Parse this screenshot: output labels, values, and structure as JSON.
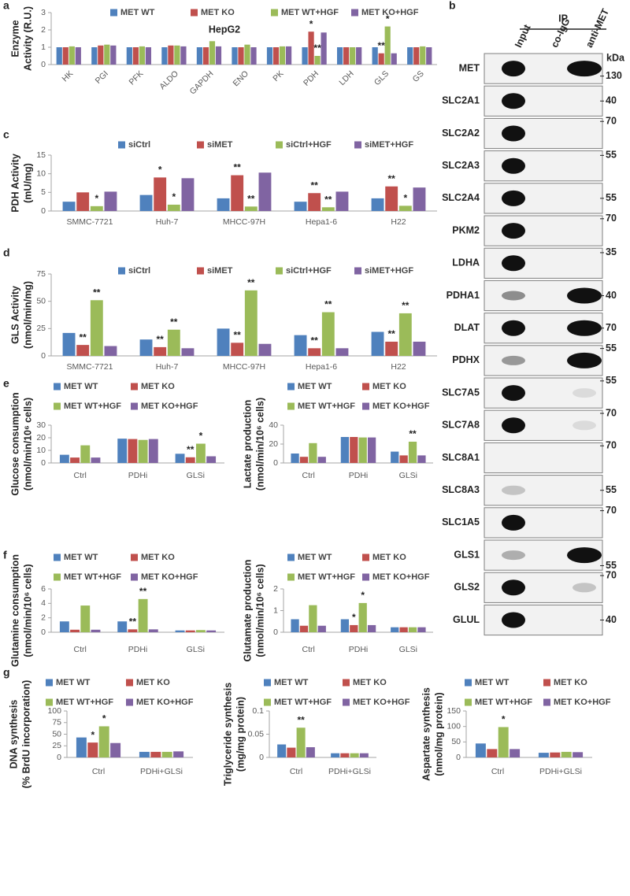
{
  "chart_data": [
    {
      "type": "bar",
      "panel": "a",
      "title": "HepG2",
      "ylabel": [
        "Enzyme",
        "Activity (R.U.)"
      ],
      "categories": [
        "HK",
        "PGI",
        "PFK",
        "ALDO",
        "GAPDH",
        "ENO",
        "PK",
        "PDH",
        "LDH",
        "GLS",
        "GS"
      ],
      "series": [
        {
          "name": "MET WT",
          "color": "#4f81bd",
          "values": [
            1,
            1,
            1,
            1,
            1,
            1,
            1,
            1,
            1,
            1,
            1
          ]
        },
        {
          "name": "MET KO",
          "color": "#c0504d",
          "values": [
            1,
            1.1,
            1,
            1.1,
            1,
            1,
            1,
            1.9,
            1,
            0.65,
            1
          ]
        },
        {
          "name": "MET WT+HGF",
          "color": "#9bbb59",
          "values": [
            1.05,
            1.15,
            1.05,
            1.1,
            1.35,
            1.15,
            1.05,
            0.5,
            1,
            2.2,
            1.05
          ]
        },
        {
          "name": "MET KO+HGF",
          "color": "#8064a2",
          "values": [
            1,
            1.1,
            1,
            1.05,
            1.05,
            1,
            1.05,
            1.85,
            1,
            0.65,
            1
          ]
        }
      ],
      "ylim": [
        0,
        3
      ],
      "yticks": [
        0,
        1,
        2,
        3
      ],
      "annotations": [
        {
          "text": "*",
          "category": "PDH",
          "series": "MET KO"
        },
        {
          "text": "**",
          "category": "PDH",
          "series": "MET WT+HGF"
        },
        {
          "text": "**",
          "category": "GLS",
          "series": "MET KO"
        },
        {
          "text": "*",
          "category": "GLS",
          "series": "MET WT+HGF"
        }
      ]
    },
    {
      "type": "bar",
      "panel": "c",
      "ylabel": [
        "PDH Activity",
        "(mU/mg)"
      ],
      "categories": [
        "SMMC-7721",
        "Huh-7",
        "MHCC-97H",
        "Hepa1-6",
        "H22"
      ],
      "series": [
        {
          "name": "siCtrl",
          "color": "#4f81bd",
          "values": [
            2.5,
            4.3,
            3.4,
            2.5,
            3.4
          ]
        },
        {
          "name": "siMET",
          "color": "#c0504d",
          "values": [
            5,
            9,
            9.6,
            4.8,
            6.6
          ]
        },
        {
          "name": "siCtrl+HGF",
          "color": "#9bbb59",
          "values": [
            1.3,
            1.7,
            1.2,
            1,
            1.4
          ]
        },
        {
          "name": "siMET+HGF",
          "color": "#8064a2",
          "values": [
            5.2,
            8.8,
            10.3,
            5.2,
            6.3
          ]
        }
      ],
      "ylim": [
        0,
        15
      ],
      "yticks": [
        0,
        5,
        10,
        15
      ],
      "annotations": [
        {
          "text": "*",
          "category": "SMMC-7721",
          "series": "siCtrl+HGF"
        },
        {
          "text": "*",
          "category": "Huh-7",
          "series": "siMET"
        },
        {
          "text": "*",
          "category": "Huh-7",
          "series": "siCtrl+HGF"
        },
        {
          "text": "**",
          "category": "MHCC-97H",
          "series": "siMET"
        },
        {
          "text": "**",
          "category": "MHCC-97H",
          "series": "siCtrl+HGF"
        },
        {
          "text": "**",
          "category": "Hepa1-6",
          "series": "siMET"
        },
        {
          "text": "**",
          "category": "Hepa1-6",
          "series": "siCtrl+HGF"
        },
        {
          "text": "**",
          "category": "H22",
          "series": "siMET"
        },
        {
          "text": "*",
          "category": "H22",
          "series": "siCtrl+HGF"
        }
      ]
    },
    {
      "type": "bar",
      "panel": "d",
      "ylabel": [
        "GLS Activity",
        "(nmol/min/mg)"
      ],
      "categories": [
        "SMMC-7721",
        "Huh-7",
        "MHCC-97H",
        "Hepa1-6",
        "H22"
      ],
      "series": [
        {
          "name": "siCtrl",
          "color": "#4f81bd",
          "values": [
            21,
            15,
            25,
            19,
            22
          ]
        },
        {
          "name": "siMET",
          "color": "#c0504d",
          "values": [
            10,
            8,
            12,
            7,
            13
          ]
        },
        {
          "name": "siCtrl+HGF",
          "color": "#9bbb59",
          "values": [
            51,
            24,
            60,
            40,
            39
          ]
        },
        {
          "name": "siMET+HGF",
          "color": "#8064a2",
          "values": [
            9,
            7,
            11,
            7,
            13
          ]
        }
      ],
      "ylim": [
        0,
        75
      ],
      "yticks": [
        0,
        25,
        50,
        75
      ],
      "annotations": [
        {
          "text": "**",
          "category": "SMMC-7721",
          "series": "siMET"
        },
        {
          "text": "**",
          "category": "SMMC-7721",
          "series": "siCtrl+HGF"
        },
        {
          "text": "**",
          "category": "Huh-7",
          "series": "siMET"
        },
        {
          "text": "**",
          "category": "Huh-7",
          "series": "siCtrl+HGF"
        },
        {
          "text": "**",
          "category": "MHCC-97H",
          "series": "siMET"
        },
        {
          "text": "**",
          "category": "MHCC-97H",
          "series": "siCtrl+HGF"
        },
        {
          "text": "**",
          "category": "Hepa1-6",
          "series": "siMET"
        },
        {
          "text": "**",
          "category": "Hepa1-6",
          "series": "siCtrl+HGF"
        },
        {
          "text": "**",
          "category": "H22",
          "series": "siMET"
        },
        {
          "text": "**",
          "category": "H22",
          "series": "siCtrl+HGF"
        }
      ]
    },
    {
      "type": "bar",
      "panel": "e",
      "ylabel": [
        "Glucose consumption",
        "(nmol/min/10⁶ cells)"
      ],
      "categories": [
        "Ctrl",
        "PDHi",
        "GLSi"
      ],
      "series": [
        {
          "name": "MET WT",
          "color": "#4f81bd",
          "values": [
            6.5,
            19.3,
            7.3
          ]
        },
        {
          "name": "MET KO",
          "color": "#c0504d",
          "values": [
            4.3,
            19,
            4.5
          ]
        },
        {
          "name": "MET WT+HGF",
          "color": "#9bbb59",
          "values": [
            14,
            18.3,
            15.3
          ]
        },
        {
          "name": "MET KO+HGF",
          "color": "#8064a2",
          "values": [
            4.3,
            19,
            5.3
          ]
        }
      ],
      "ylim": [
        0,
        30
      ],
      "yticks": [
        0,
        10,
        20,
        30
      ],
      "annotations": [
        {
          "text": "**",
          "category": "GLSi",
          "series": "MET KO"
        },
        {
          "text": "*",
          "category": "GLSi",
          "series": "MET WT+HGF"
        }
      ]
    },
    {
      "type": "bar",
      "ylabel": [
        "Lactate production",
        "(nmol/min/10⁶ cells)"
      ],
      "categories": [
        "Ctrl",
        "PDHi",
        "GLSi"
      ],
      "series": [
        {
          "name": "MET WT",
          "color": "#4f81bd",
          "values": [
            10,
            27.5,
            12
          ]
        },
        {
          "name": "MET KO",
          "color": "#c0504d",
          "values": [
            6.5,
            27.5,
            8
          ]
        },
        {
          "name": "MET WT+HGF",
          "color": "#9bbb59",
          "values": [
            21,
            27,
            22.5
          ]
        },
        {
          "name": "MET KO+HGF",
          "color": "#8064a2",
          "values": [
            6.5,
            27,
            8
          ]
        }
      ],
      "ylim": [
        0,
        40
      ],
      "yticks": [
        0,
        20,
        40
      ],
      "annotations": [
        {
          "text": "**",
          "category": "GLSi",
          "series": "MET WT+HGF"
        }
      ]
    },
    {
      "type": "bar",
      "panel": "f",
      "ylabel": [
        "Glutamine consumption",
        "(nmol/min/10⁶ cells)"
      ],
      "categories": [
        "Ctrl",
        "PDHi",
        "GLSi"
      ],
      "series": [
        {
          "name": "MET WT",
          "color": "#4f81bd",
          "values": [
            1.5,
            1.5,
            0.25
          ]
        },
        {
          "name": "MET KO",
          "color": "#c0504d",
          "values": [
            0.35,
            0.4,
            0.25
          ]
        },
        {
          "name": "MET WT+HGF",
          "color": "#9bbb59",
          "values": [
            3.7,
            4.6,
            0.3
          ]
        },
        {
          "name": "MET KO+HGF",
          "color": "#8064a2",
          "values": [
            0.35,
            0.4,
            0.25
          ]
        }
      ],
      "ylim": [
        0,
        6
      ],
      "yticks": [
        0,
        2,
        4,
        6
      ],
      "annotations": [
        {
          "text": "**",
          "category": "PDHi",
          "series": "MET KO"
        },
        {
          "text": "**",
          "category": "PDHi",
          "series": "MET WT+HGF"
        }
      ]
    },
    {
      "type": "bar",
      "ylabel": [
        "Glutamate production",
        "(nmol/min/10⁶ cells)"
      ],
      "categories": [
        "Ctrl",
        "PDHi",
        "GLSi"
      ],
      "series": [
        {
          "name": "MET WT",
          "color": "#4f81bd",
          "values": [
            0.6,
            0.6,
            0.23
          ]
        },
        {
          "name": "MET KO",
          "color": "#c0504d",
          "values": [
            0.3,
            0.33,
            0.23
          ]
        },
        {
          "name": "MET WT+HGF",
          "color": "#9bbb59",
          "values": [
            1.25,
            1.35,
            0.23
          ]
        },
        {
          "name": "MET KO+HGF",
          "color": "#8064a2",
          "values": [
            0.3,
            0.33,
            0.23
          ]
        }
      ],
      "ylim": [
        0,
        2
      ],
      "yticks": [
        0,
        1,
        2
      ],
      "annotations": [
        {
          "text": "*",
          "category": "PDHi",
          "series": "MET KO"
        },
        {
          "text": "*",
          "category": "PDHi",
          "series": "MET WT+HGF"
        }
      ]
    },
    {
      "type": "bar",
      "panel": "g",
      "ylabel": [
        "DNA synthesis",
        "(% BrdU incorporation)"
      ],
      "categories": [
        "Ctrl",
        "PDHi+GLSi"
      ],
      "series": [
        {
          "name": "MET WT",
          "color": "#4f81bd",
          "values": [
            43,
            12
          ]
        },
        {
          "name": "MET KO",
          "color": "#c0504d",
          "values": [
            32,
            12
          ]
        },
        {
          "name": "MET WT+HGF",
          "color": "#9bbb59",
          "values": [
            67,
            12
          ]
        },
        {
          "name": "MET KO+HGF",
          "color": "#8064a2",
          "values": [
            31,
            13
          ]
        }
      ],
      "ylim": [
        0,
        100
      ],
      "yticks": [
        0,
        25,
        50,
        75,
        100
      ],
      "annotations": [
        {
          "text": "*",
          "category": "Ctrl",
          "series": "MET KO"
        },
        {
          "text": "*",
          "category": "Ctrl",
          "series": "MET WT+HGF"
        }
      ]
    },
    {
      "type": "bar",
      "ylabel": [
        "Triglyceride synthesis",
        "(mg/mg protein)"
      ],
      "categories": [
        "Ctrl",
        "PDHi+GLSi"
      ],
      "series": [
        {
          "name": "MET WT",
          "color": "#4f81bd",
          "values": [
            0.028,
            0.009
          ]
        },
        {
          "name": "MET KO",
          "color": "#c0504d",
          "values": [
            0.021,
            0.009
          ]
        },
        {
          "name": "MET WT+HGF",
          "color": "#9bbb59",
          "values": [
            0.064,
            0.009
          ]
        },
        {
          "name": "MET KO+HGF",
          "color": "#8064a2",
          "values": [
            0.022,
            0.009
          ]
        }
      ],
      "ylim": [
        0,
        0.1
      ],
      "yticks": [
        0,
        0.05,
        0.1
      ],
      "annotations": [
        {
          "text": "**",
          "category": "Ctrl",
          "series": "MET WT+HGF"
        }
      ]
    },
    {
      "type": "bar",
      "ylabel": [
        "Aspartate synthesis",
        "(nmol/mg protein)"
      ],
      "categories": [
        "Ctrl",
        "PDHi+GLSi"
      ],
      "series": [
        {
          "name": "MET WT",
          "color": "#4f81bd",
          "values": [
            45,
            15
          ]
        },
        {
          "name": "MET KO",
          "color": "#c0504d",
          "values": [
            27,
            16
          ]
        },
        {
          "name": "MET WT+HGF",
          "color": "#9bbb59",
          "values": [
            98,
            18
          ]
        },
        {
          "name": "MET KO+HGF",
          "color": "#8064a2",
          "values": [
            27,
            17
          ]
        }
      ],
      "ylim": [
        0,
        150
      ],
      "yticks": [
        0,
        50,
        100,
        150
      ],
      "annotations": [
        {
          "text": "*",
          "category": "Ctrl",
          "series": "MET WT+HGF"
        }
      ]
    }
  ],
  "blot": {
    "panel": "b",
    "header": "IP",
    "lanes": [
      "Input",
      "co-IgG",
      "anti-MET"
    ],
    "unit": "kDa",
    "rows": [
      {
        "label": "MET",
        "kda": 130
      },
      {
        "label": "SLC2A1",
        "kda": 40
      },
      {
        "label": "SLC2A2",
        "kda": 70
      },
      {
        "label": "SLC2A3",
        "kda": 55
      },
      {
        "label": "SLC2A4",
        "kda": 55
      },
      {
        "label": "PKM2",
        "kda": 70
      },
      {
        "label": "LDHA",
        "kda": 35
      },
      {
        "label": "PDHA1",
        "kda": 40
      },
      {
        "label": "DLAT",
        "kda": 70
      },
      {
        "label": "PDHX",
        "kda": 55
      },
      {
        "label": "SLC7A5",
        "kda": 55
      },
      {
        "label": "SLC7A8",
        "kda": 70
      },
      {
        "label": "SLC8A1",
        "kda": 70
      },
      {
        "label": "SLC8A3",
        "kda": 55
      },
      {
        "label": "SLC1A5",
        "kda": 70
      },
      {
        "label": "GLS1",
        "kda": 55
      },
      {
        "label": "GLS2",
        "kda": 70
      },
      {
        "label": "GLUL",
        "kda": 40
      }
    ]
  }
}
